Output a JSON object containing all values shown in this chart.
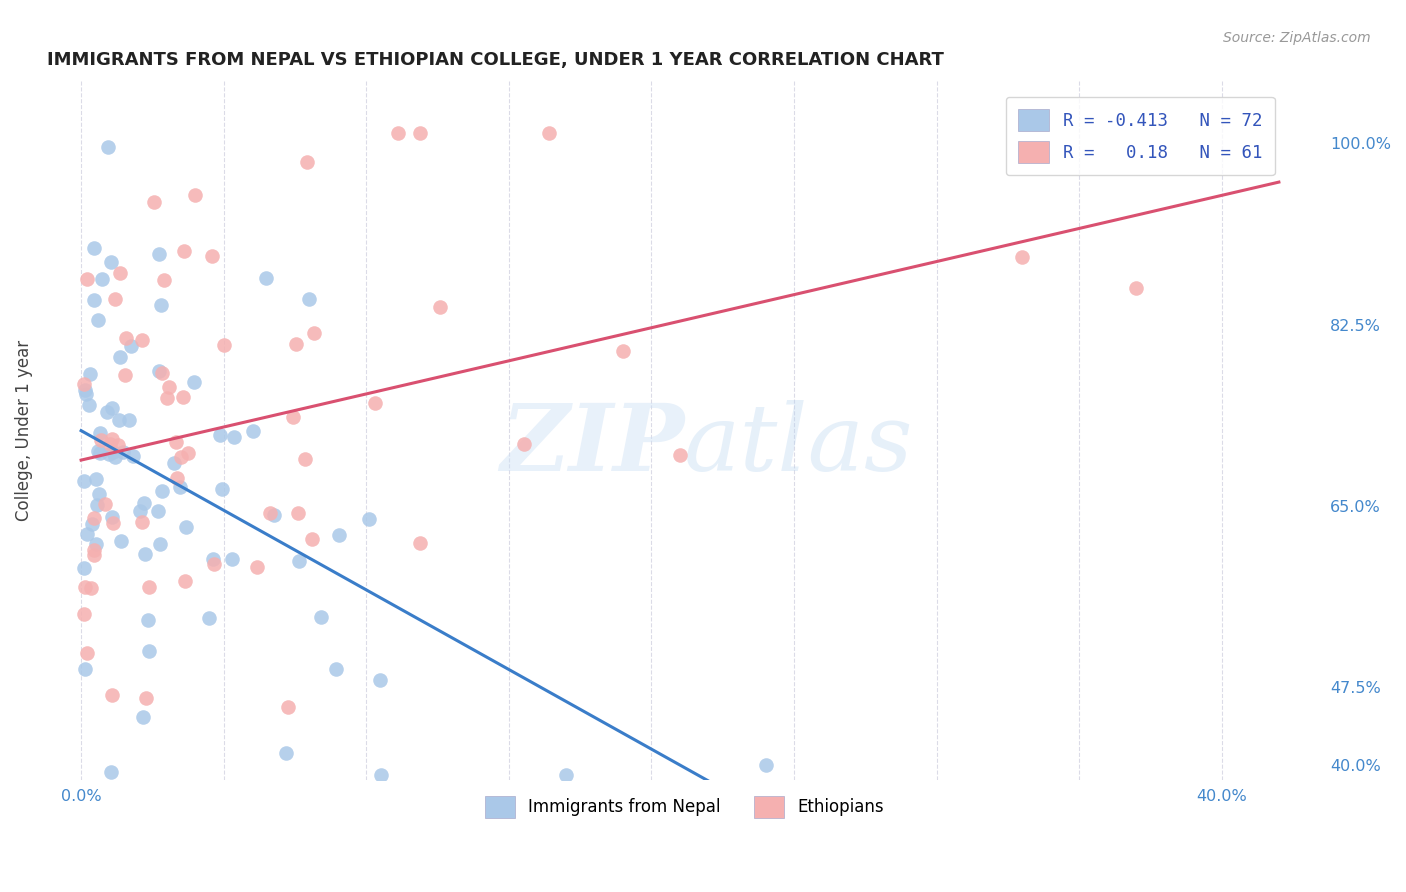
{
  "title": "IMMIGRANTS FROM NEPAL VS ETHIOPIAN COLLEGE, UNDER 1 YEAR CORRELATION CHART",
  "source": "Source: ZipAtlas.com",
  "ylabel": "College, Under 1 year",
  "xlim": [
    -0.012,
    0.435
  ],
  "ylim": [
    0.385,
    1.06
  ],
  "ytick_positions": [
    0.4,
    0.475,
    0.65,
    0.825,
    1.0
  ],
  "ytick_labels": [
    "40.0%",
    "47.5%",
    "65.0%",
    "82.5%",
    "100.0%"
  ],
  "xtick_positions": [
    0.0,
    0.05,
    0.1,
    0.15,
    0.2,
    0.25,
    0.3,
    0.35,
    0.4
  ],
  "xtick_labels": [
    "0.0%",
    "",
    "",
    "",
    "",
    "",
    "",
    "",
    "40.0%"
  ],
  "nepal_scatter_color": "#aac8e8",
  "nepal_line_color": "#3a7dc9",
  "ethiopian_scatter_color": "#f5b0b0",
  "ethiopian_line_color": "#d95070",
  "dashed_color": "#b8b8cc",
  "nepal_R": -0.413,
  "nepal_N": 72,
  "ethiopian_R": 0.18,
  "ethiopian_N": 61,
  "axis_label_color": "#4488cc",
  "title_color": "#222222",
  "source_color": "#999999",
  "legend_text_color": "#3355bb",
  "grid_color": "#ccccdd"
}
